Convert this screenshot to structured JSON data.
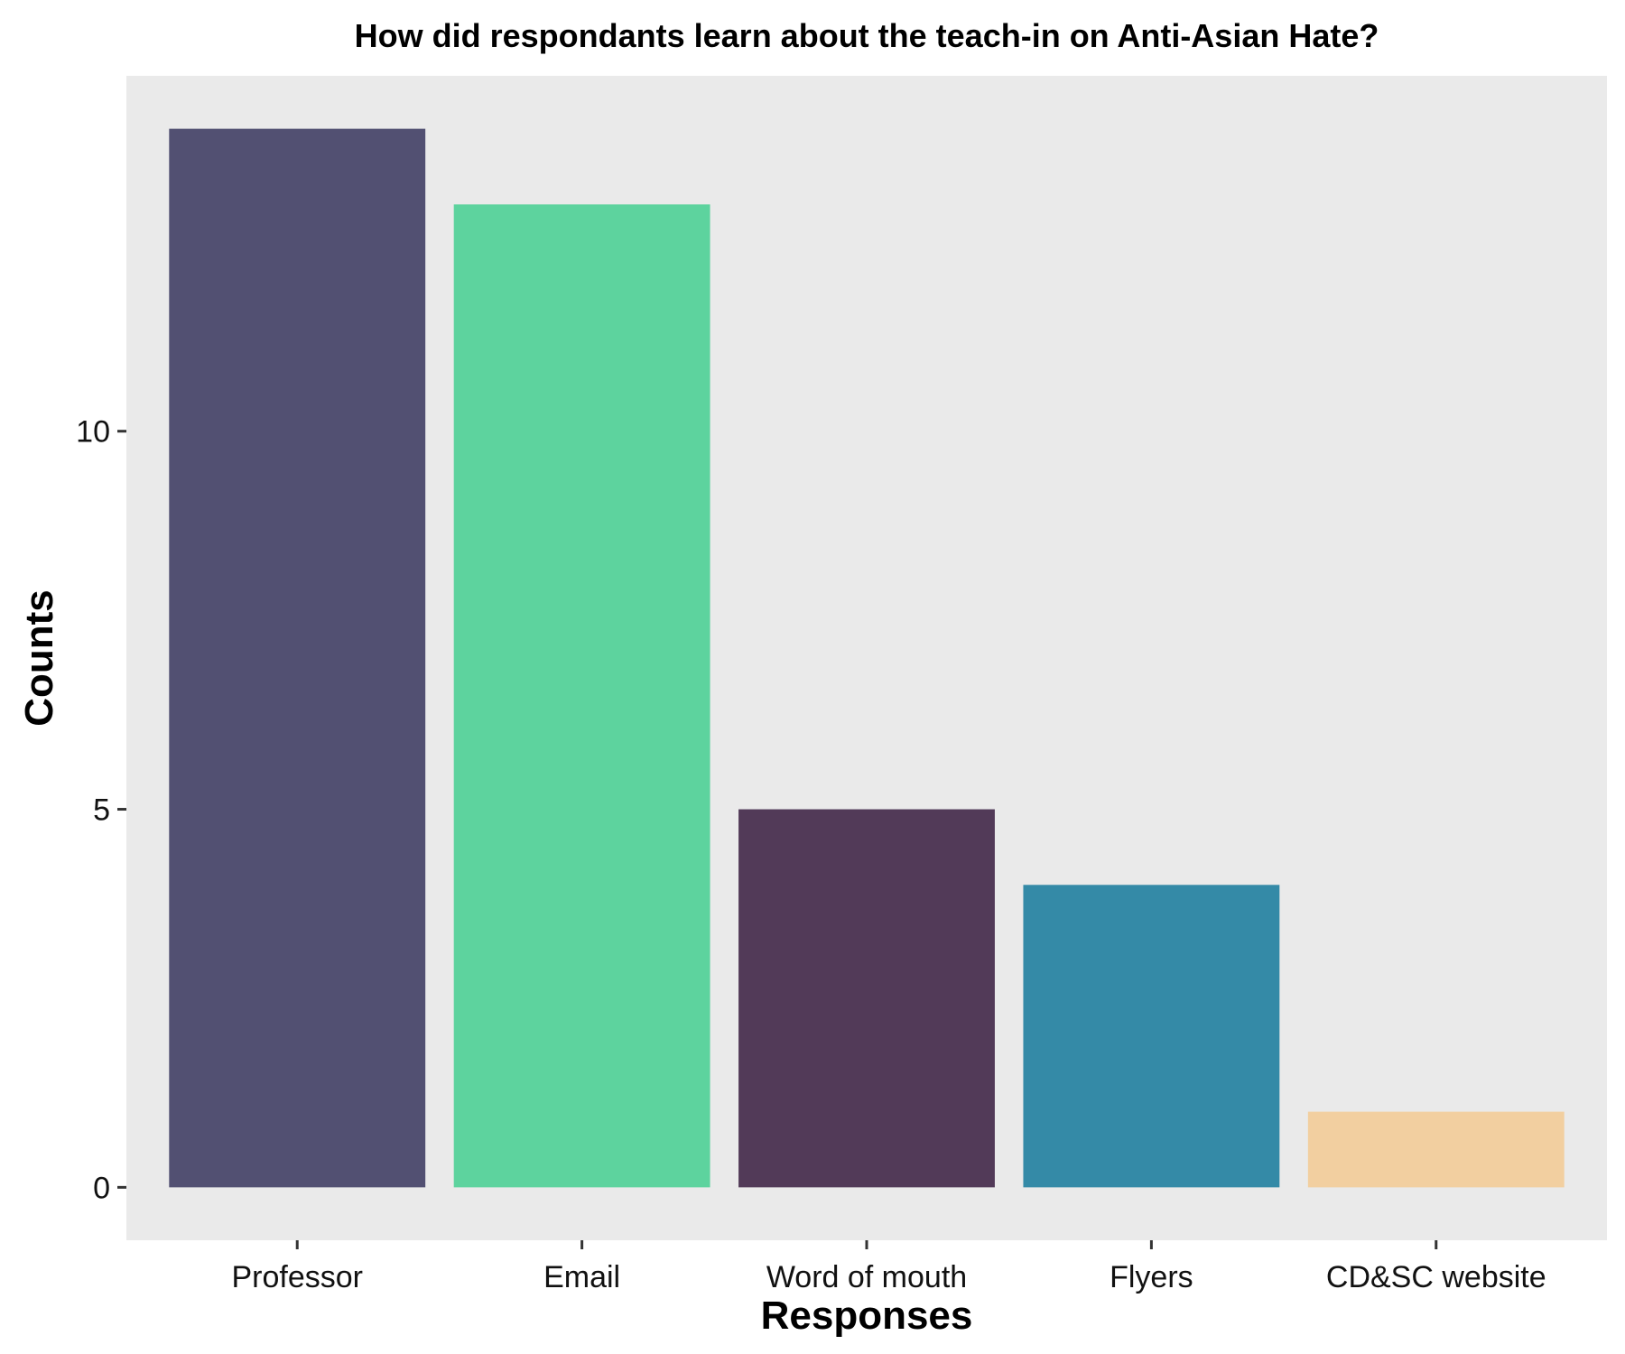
{
  "chart_data": {
    "type": "bar",
    "title": "How did respondants learn about the teach-in on Anti-Asian Hate?",
    "xlabel": "Responses",
    "ylabel": "Counts",
    "categories": [
      "Professor",
      "Email",
      "Word of mouth",
      "Flyers",
      "CD&SC website"
    ],
    "values": [
      14,
      13,
      5,
      4,
      1
    ],
    "ylim": [
      -0.7,
      14.7
    ],
    "yticks": [
      "0",
      "5",
      "10"
    ],
    "grid": false,
    "legend": "none",
    "colors": [
      "#525072",
      "#5DD39E",
      "#523A58",
      "#348AA7",
      "#F2CFA0"
    ],
    "panel_color": "#EAEAEA"
  }
}
